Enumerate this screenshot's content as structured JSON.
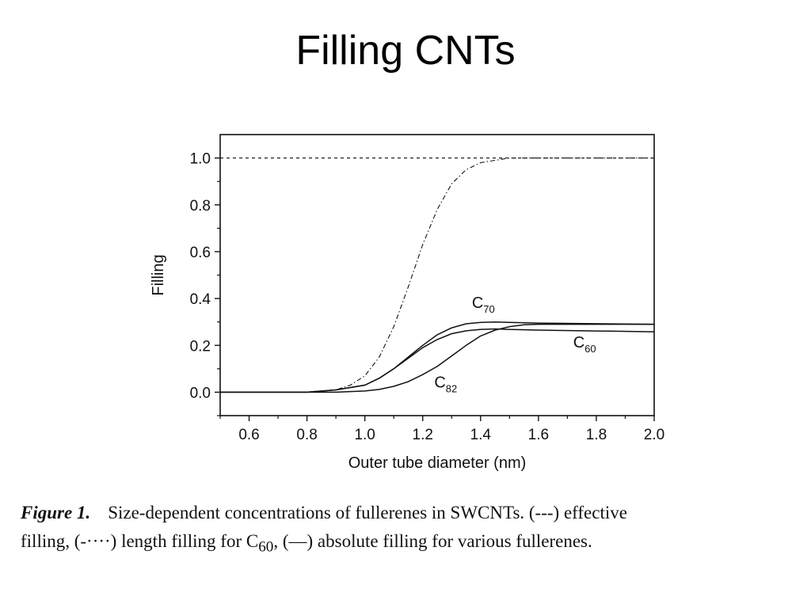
{
  "slide": {
    "title": "Filling CNTs"
  },
  "chart_data": {
    "type": "line",
    "xlabel": "Outer tube diameter (nm)",
    "ylabel": "Filling",
    "xlim": [
      0.5,
      2.0
    ],
    "ylim": [
      -0.1,
      1.1
    ],
    "xticks": [
      "0.6",
      "0.8",
      "1.0",
      "1.2",
      "1.4",
      "1.6",
      "1.8",
      "2.0"
    ],
    "yticks": [
      "0.0",
      "0.2",
      "0.4",
      "0.6",
      "0.8",
      "1.0"
    ],
    "grid": false,
    "series": [
      {
        "style": "dashed",
        "x": [
          0.5,
          2.0
        ],
        "y": [
          1.0,
          1.0
        ]
      },
      {
        "style": "dash-dot",
        "x": [
          0.5,
          0.8,
          0.9,
          0.95,
          1.0,
          1.05,
          1.1,
          1.15,
          1.2,
          1.25,
          1.3,
          1.35,
          1.4,
          1.45,
          1.5,
          1.55,
          1.6,
          2.0
        ],
        "y": [
          0.0,
          0.0,
          0.01,
          0.03,
          0.07,
          0.15,
          0.28,
          0.45,
          0.63,
          0.78,
          0.89,
          0.95,
          0.98,
          0.99,
          1.0,
          1.0,
          1.0,
          1.0
        ]
      },
      {
        "name": "C70",
        "style": "solid",
        "x": [
          0.5,
          0.8,
          0.9,
          1.0,
          1.05,
          1.1,
          1.15,
          1.2,
          1.25,
          1.3,
          1.35,
          1.4,
          1.45,
          1.5,
          1.6,
          2.0
        ],
        "y": [
          0.0,
          0.0,
          0.01,
          0.03,
          0.06,
          0.1,
          0.15,
          0.2,
          0.245,
          0.275,
          0.292,
          0.298,
          0.3,
          0.298,
          0.295,
          0.29
        ]
      },
      {
        "name": "C60",
        "style": "solid",
        "x": [
          0.5,
          0.8,
          0.9,
          1.0,
          1.05,
          1.1,
          1.15,
          1.2,
          1.25,
          1.3,
          1.35,
          1.4,
          1.45,
          1.5,
          1.6,
          2.0
        ],
        "y": [
          0.0,
          0.0,
          0.01,
          0.03,
          0.06,
          0.1,
          0.145,
          0.19,
          0.225,
          0.25,
          0.262,
          0.268,
          0.27,
          0.268,
          0.265,
          0.258
        ]
      },
      {
        "name": "C82",
        "style": "solid",
        "x": [
          0.5,
          0.8,
          0.9,
          1.0,
          1.05,
          1.1,
          1.15,
          1.2,
          1.25,
          1.3,
          1.35,
          1.4,
          1.45,
          1.5,
          1.55,
          1.6,
          2.0
        ],
        "y": [
          0.0,
          0.0,
          0.0,
          0.005,
          0.012,
          0.025,
          0.045,
          0.075,
          0.11,
          0.155,
          0.2,
          0.24,
          0.265,
          0.28,
          0.288,
          0.29,
          0.29
        ]
      }
    ],
    "annotations": [
      {
        "text": "C",
        "sub": "70",
        "x": 1.37,
        "y": 0.36
      },
      {
        "text": "C",
        "sub": "60",
        "x": 1.72,
        "y": 0.19
      },
      {
        "text": "C",
        "sub": "82",
        "x": 1.24,
        "y": 0.02
      }
    ]
  },
  "caption": {
    "label": "Figure 1.",
    "line1": "Size-dependent concentrations of fullerenes in SWCNTs. (---) effective",
    "line2_a": "filling, (-····) length filling for C",
    "line2_sub": "60",
    "line2_b": ", (—) absolute filling for various fullerenes."
  }
}
